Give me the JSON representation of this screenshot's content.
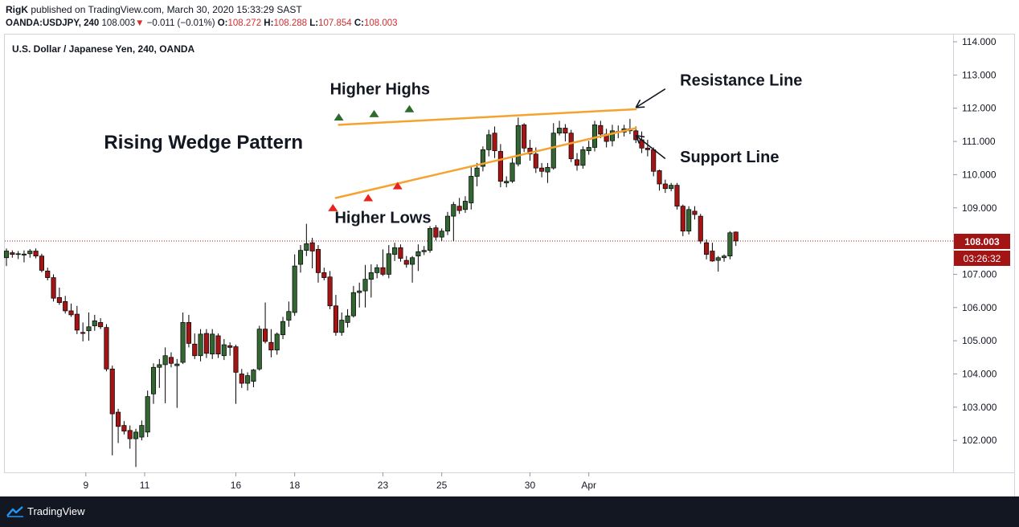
{
  "header": {
    "user": "RigK",
    "published_text": "published on TradingView.com, March 30, 2020 15:33:29 SAST",
    "symbol": "OANDA:USDJPY, 240",
    "price": "108.003",
    "change": "−0.011 (−0.01%)",
    "o_label": "O:",
    "o_value": "108.272",
    "h_label": "H:",
    "h_value": "108.288",
    "l_label": "L:",
    "l_value": "107.854",
    "c_label": "C:",
    "c_value": "108.003"
  },
  "chart_data": {
    "type": "candlestick",
    "title": "U.S. Dollar / Japanese Yen, 240, OANDA",
    "y_axis": {
      "min": 101.2,
      "max": 114.1,
      "ticks": [
        "114.000",
        "113.000",
        "112.000",
        "111.000",
        "110.000",
        "109.000",
        "108.000",
        "107.000",
        "106.000",
        "105.000",
        "104.000",
        "103.000",
        "102.000"
      ]
    },
    "x_axis": {
      "tick_labels": [
        "9",
        "11",
        "16",
        "18",
        "23",
        "25",
        "30",
        "Apr"
      ],
      "tick_index": [
        27,
        47,
        78,
        98,
        128,
        148,
        178,
        198
      ]
    },
    "current_price": {
      "value": 108.003,
      "label": "108.003",
      "countdown": "03:26:32",
      "color": "#a31515"
    },
    "colors": {
      "up_fill": "#336633",
      "down_fill": "#a31515",
      "wick": "#000000",
      "wedge": "#f5a22f",
      "marker_high": "#2e6b2e",
      "marker_low": "#e8231c"
    },
    "candles": [
      {
        "o": 107.5,
        "h": 107.78,
        "l": 107.25,
        "c": 107.7
      },
      {
        "o": 107.65,
        "h": 107.72,
        "l": 107.5,
        "c": 107.6
      },
      {
        "o": 107.6,
        "h": 107.7,
        "l": 107.46,
        "c": 107.62
      },
      {
        "o": 107.58,
        "h": 107.72,
        "l": 107.36,
        "c": 107.61
      },
      {
        "o": 107.62,
        "h": 107.76,
        "l": 107.5,
        "c": 107.7
      },
      {
        "o": 107.7,
        "h": 107.78,
        "l": 107.48,
        "c": 107.55
      },
      {
        "o": 107.55,
        "h": 107.62,
        "l": 107.06,
        "c": 107.12
      },
      {
        "o": 107.1,
        "h": 107.2,
        "l": 106.82,
        "c": 106.9
      },
      {
        "o": 106.9,
        "h": 107.0,
        "l": 106.18,
        "c": 106.28
      },
      {
        "o": 106.3,
        "h": 106.6,
        "l": 106.08,
        "c": 106.15
      },
      {
        "o": 106.18,
        "h": 106.35,
        "l": 105.82,
        "c": 105.9
      },
      {
        "o": 105.9,
        "h": 106.12,
        "l": 105.72,
        "c": 105.78
      },
      {
        "o": 105.8,
        "h": 106.05,
        "l": 105.2,
        "c": 105.32
      },
      {
        "o": 105.25,
        "h": 105.55,
        "l": 104.98,
        "c": 105.22
      },
      {
        "o": 105.3,
        "h": 105.85,
        "l": 105.0,
        "c": 105.42
      },
      {
        "o": 105.45,
        "h": 105.78,
        "l": 105.3,
        "c": 105.6
      },
      {
        "o": 105.55,
        "h": 105.68,
        "l": 105.35,
        "c": 105.42
      },
      {
        "o": 105.4,
        "h": 105.5,
        "l": 104.08,
        "c": 104.15
      },
      {
        "o": 104.15,
        "h": 104.25,
        "l": 101.55,
        "c": 102.8
      },
      {
        "o": 102.85,
        "h": 102.95,
        "l": 101.92,
        "c": 102.42
      },
      {
        "o": 102.45,
        "h": 102.58,
        "l": 102.18,
        "c": 102.28
      },
      {
        "o": 102.3,
        "h": 102.45,
        "l": 101.75,
        "c": 102.05
      },
      {
        "o": 102.05,
        "h": 102.35,
        "l": 101.2,
        "c": 102.25
      },
      {
        "o": 102.1,
        "h": 102.6,
        "l": 102.0,
        "c": 102.45
      },
      {
        "o": 102.25,
        "h": 103.5,
        "l": 102.1,
        "c": 103.32
      },
      {
        "o": 103.4,
        "h": 104.32,
        "l": 103.1,
        "c": 104.2
      },
      {
        "o": 104.2,
        "h": 104.45,
        "l": 103.58,
        "c": 104.28
      },
      {
        "o": 104.28,
        "h": 104.8,
        "l": 103.12,
        "c": 104.55
      },
      {
        "o": 104.5,
        "h": 104.65,
        "l": 104.2,
        "c": 104.32
      },
      {
        "o": 104.25,
        "h": 104.45,
        "l": 102.98,
        "c": 104.3
      },
      {
        "o": 104.35,
        "h": 105.85,
        "l": 104.3,
        "c": 105.55
      },
      {
        "o": 105.55,
        "h": 105.78,
        "l": 104.8,
        "c": 104.92
      },
      {
        "o": 104.9,
        "h": 105.22,
        "l": 104.45,
        "c": 104.55
      },
      {
        "o": 104.55,
        "h": 105.35,
        "l": 104.38,
        "c": 105.2
      },
      {
        "o": 105.22,
        "h": 105.35,
        "l": 104.48,
        "c": 104.62
      },
      {
        "o": 104.6,
        "h": 105.35,
        "l": 104.45,
        "c": 105.2
      },
      {
        "o": 105.15,
        "h": 105.22,
        "l": 104.48,
        "c": 104.6
      },
      {
        "o": 104.55,
        "h": 105.05,
        "l": 104.42,
        "c": 104.88
      },
      {
        "o": 104.85,
        "h": 104.95,
        "l": 104.55,
        "c": 104.8
      },
      {
        "o": 104.82,
        "h": 104.88,
        "l": 103.1,
        "c": 104.05
      },
      {
        "o": 104.0,
        "h": 104.15,
        "l": 103.58,
        "c": 103.72
      },
      {
        "o": 103.72,
        "h": 104.05,
        "l": 103.5,
        "c": 103.95
      },
      {
        "o": 103.78,
        "h": 104.15,
        "l": 103.6,
        "c": 104.12
      },
      {
        "o": 104.15,
        "h": 105.45,
        "l": 104.1,
        "c": 105.35
      },
      {
        "o": 105.35,
        "h": 106.15,
        "l": 104.92,
        "c": 104.98
      },
      {
        "o": 104.95,
        "h": 105.35,
        "l": 104.5,
        "c": 104.72
      },
      {
        "o": 104.72,
        "h": 105.25,
        "l": 104.58,
        "c": 105.2
      },
      {
        "o": 105.18,
        "h": 105.72,
        "l": 105.05,
        "c": 105.58
      },
      {
        "o": 105.62,
        "h": 106.18,
        "l": 105.42,
        "c": 105.88
      },
      {
        "o": 105.85,
        "h": 107.6,
        "l": 105.75,
        "c": 107.25
      },
      {
        "o": 107.3,
        "h": 107.88,
        "l": 107.05,
        "c": 107.72
      },
      {
        "o": 107.72,
        "h": 108.52,
        "l": 107.55,
        "c": 107.92
      },
      {
        "o": 107.95,
        "h": 108.1,
        "l": 107.18,
        "c": 107.7
      },
      {
        "o": 107.75,
        "h": 107.88,
        "l": 106.75,
        "c": 107.05
      },
      {
        "o": 107.05,
        "h": 107.2,
        "l": 106.82,
        "c": 106.9
      },
      {
        "o": 106.92,
        "h": 107.1,
        "l": 105.95,
        "c": 106.05
      },
      {
        "o": 106.05,
        "h": 106.38,
        "l": 105.15,
        "c": 105.25
      },
      {
        "o": 105.25,
        "h": 105.85,
        "l": 105.15,
        "c": 105.62
      },
      {
        "o": 105.55,
        "h": 105.95,
        "l": 105.4,
        "c": 105.75
      },
      {
        "o": 105.75,
        "h": 106.65,
        "l": 105.7,
        "c": 106.45
      },
      {
        "o": 106.45,
        "h": 106.75,
        "l": 106.0,
        "c": 106.5
      },
      {
        "o": 106.5,
        "h": 107.28,
        "l": 106.0,
        "c": 106.85
      },
      {
        "o": 106.85,
        "h": 107.3,
        "l": 106.3,
        "c": 107.05
      },
      {
        "o": 107.05,
        "h": 107.3,
        "l": 106.88,
        "c": 107.2
      },
      {
        "o": 107.2,
        "h": 107.75,
        "l": 106.95,
        "c": 107.0
      },
      {
        "o": 107.0,
        "h": 107.88,
        "l": 106.88,
        "c": 107.62
      },
      {
        "o": 107.6,
        "h": 107.95,
        "l": 107.4,
        "c": 107.8
      },
      {
        "o": 107.8,
        "h": 107.9,
        "l": 107.38,
        "c": 107.48
      },
      {
        "o": 107.42,
        "h": 107.55,
        "l": 107.2,
        "c": 107.3
      },
      {
        "o": 107.3,
        "h": 107.55,
        "l": 106.75,
        "c": 107.5
      },
      {
        "o": 107.55,
        "h": 107.9,
        "l": 107.1,
        "c": 107.68
      },
      {
        "o": 107.68,
        "h": 107.85,
        "l": 107.58,
        "c": 107.72
      },
      {
        "o": 107.72,
        "h": 108.45,
        "l": 107.65,
        "c": 108.38
      },
      {
        "o": 108.4,
        "h": 108.48,
        "l": 108.02,
        "c": 108.12
      },
      {
        "o": 108.12,
        "h": 108.38,
        "l": 108.0,
        "c": 108.3
      },
      {
        "o": 108.3,
        "h": 108.88,
        "l": 108.18,
        "c": 108.75
      },
      {
        "o": 108.75,
        "h": 109.18,
        "l": 108.0,
        "c": 109.1
      },
      {
        "o": 109.05,
        "h": 109.3,
        "l": 108.82,
        "c": 108.92
      },
      {
        "o": 108.95,
        "h": 109.35,
        "l": 108.85,
        "c": 109.2
      },
      {
        "o": 109.15,
        "h": 110.25,
        "l": 108.95,
        "c": 109.95
      },
      {
        "o": 109.95,
        "h": 110.35,
        "l": 109.65,
        "c": 110.2
      },
      {
        "o": 110.25,
        "h": 110.85,
        "l": 110.1,
        "c": 110.75
      },
      {
        "o": 110.75,
        "h": 111.35,
        "l": 110.55,
        "c": 111.2
      },
      {
        "o": 111.25,
        "h": 111.45,
        "l": 110.5,
        "c": 110.72
      },
      {
        "o": 110.7,
        "h": 110.92,
        "l": 109.62,
        "c": 109.8
      },
      {
        "o": 109.75,
        "h": 109.95,
        "l": 109.62,
        "c": 109.8
      },
      {
        "o": 109.8,
        "h": 110.5,
        "l": 109.75,
        "c": 110.35
      },
      {
        "o": 110.32,
        "h": 111.72,
        "l": 110.25,
        "c": 111.48
      },
      {
        "o": 111.5,
        "h": 111.55,
        "l": 110.68,
        "c": 110.8
      },
      {
        "o": 110.8,
        "h": 111.05,
        "l": 110.42,
        "c": 110.62
      },
      {
        "o": 110.62,
        "h": 110.82,
        "l": 110.05,
        "c": 110.2
      },
      {
        "o": 110.2,
        "h": 110.35,
        "l": 109.92,
        "c": 110.1
      },
      {
        "o": 110.08,
        "h": 110.35,
        "l": 109.75,
        "c": 110.22
      },
      {
        "o": 110.2,
        "h": 111.55,
        "l": 110.15,
        "c": 111.25
      },
      {
        "o": 111.25,
        "h": 111.62,
        "l": 111.18,
        "c": 111.4
      },
      {
        "o": 111.4,
        "h": 111.52,
        "l": 111.0,
        "c": 111.25
      },
      {
        "o": 111.25,
        "h": 111.35,
        "l": 110.38,
        "c": 110.48
      },
      {
        "o": 110.45,
        "h": 110.65,
        "l": 110.12,
        "c": 110.28
      },
      {
        "o": 110.28,
        "h": 110.85,
        "l": 110.18,
        "c": 110.75
      },
      {
        "o": 110.72,
        "h": 111.02,
        "l": 110.6,
        "c": 110.82
      },
      {
        "o": 110.82,
        "h": 111.62,
        "l": 110.7,
        "c": 111.5
      },
      {
        "o": 111.48,
        "h": 111.62,
        "l": 111.1,
        "c": 111.22
      },
      {
        "o": 111.22,
        "h": 111.38,
        "l": 110.82,
        "c": 111.0
      },
      {
        "o": 111.02,
        "h": 111.5,
        "l": 110.85,
        "c": 111.32
      },
      {
        "o": 111.3,
        "h": 111.48,
        "l": 111.1,
        "c": 111.28
      },
      {
        "o": 111.28,
        "h": 111.5,
        "l": 111.15,
        "c": 111.38
      },
      {
        "o": 111.38,
        "h": 111.68,
        "l": 111.22,
        "c": 111.32
      },
      {
        "o": 111.32,
        "h": 111.45,
        "l": 110.95,
        "c": 111.05
      },
      {
        "o": 111.05,
        "h": 111.3,
        "l": 110.65,
        "c": 110.8
      },
      {
        "o": 110.8,
        "h": 111.05,
        "l": 110.55,
        "c": 110.75
      },
      {
        "o": 110.75,
        "h": 110.82,
        "l": 109.95,
        "c": 110.1
      },
      {
        "o": 110.12,
        "h": 110.15,
        "l": 109.52,
        "c": 109.72
      },
      {
        "o": 109.72,
        "h": 109.85,
        "l": 109.45,
        "c": 109.58
      },
      {
        "o": 109.58,
        "h": 109.75,
        "l": 109.5,
        "c": 109.68
      },
      {
        "o": 109.68,
        "h": 109.75,
        "l": 108.95,
        "c": 109.05
      },
      {
        "o": 109.05,
        "h": 109.1,
        "l": 108.15,
        "c": 108.3
      },
      {
        "o": 108.3,
        "h": 109.05,
        "l": 108.2,
        "c": 108.95
      },
      {
        "o": 108.9,
        "h": 109.05,
        "l": 108.65,
        "c": 108.8
      },
      {
        "o": 108.75,
        "h": 108.82,
        "l": 107.92,
        "c": 108.0
      },
      {
        "o": 107.95,
        "h": 108.05,
        "l": 107.45,
        "c": 107.6
      },
      {
        "o": 107.7,
        "h": 107.95,
        "l": 107.38,
        "c": 107.4
      },
      {
        "o": 107.42,
        "h": 107.55,
        "l": 107.08,
        "c": 107.5
      },
      {
        "o": 107.5,
        "h": 107.6,
        "l": 107.38,
        "c": 107.55
      },
      {
        "o": 107.55,
        "h": 108.3,
        "l": 107.45,
        "c": 108.25
      },
      {
        "o": 108.272,
        "h": 108.288,
        "l": 107.854,
        "c": 108.003
      }
    ],
    "candle_x_index": [
      0,
      2,
      4,
      6,
      8,
      10,
      12,
      14,
      16,
      18,
      20,
      22,
      24,
      26,
      28,
      30,
      32,
      34,
      36,
      38,
      40,
      42,
      44,
      46,
      48,
      50,
      52,
      54,
      56,
      58,
      60,
      62,
      64,
      66,
      68,
      70,
      72,
      74,
      76,
      78,
      80,
      82,
      84,
      86,
      88,
      90,
      92,
      94,
      96,
      98,
      100,
      102,
      104,
      106,
      108,
      110,
      112,
      114,
      116,
      118,
      120,
      122,
      124,
      126,
      128,
      130,
      132,
      134,
      136,
      138,
      140,
      142,
      144,
      146,
      148,
      150,
      152,
      154,
      156,
      158,
      160,
      162,
      164,
      166,
      168,
      170,
      172,
      174,
      176,
      178,
      180,
      182,
      184,
      186,
      188,
      190,
      192,
      194,
      196,
      198,
      200,
      202,
      204,
      206,
      208,
      210,
      212,
      214,
      216,
      218,
      220,
      222,
      224,
      226,
      228,
      230,
      232,
      234,
      236,
      238,
      240,
      242,
      244,
      246,
      248,
      250,
      252,
      254,
      256,
      258
    ],
    "wedge_lines": [
      {
        "name": "resistance",
        "points": [
          {
            "i": 113,
            "y": 111.5
          },
          {
            "i": 214,
            "y": 111.97
          }
        ]
      },
      {
        "name": "support",
        "points": [
          {
            "i": 112,
            "y": 109.3
          },
          {
            "i": 214,
            "y": 111.4
          }
        ]
      }
    ],
    "markers": [
      {
        "kind": "high",
        "i": 113,
        "y": 111.75
      },
      {
        "kind": "high",
        "i": 125,
        "y": 111.85
      },
      {
        "kind": "high",
        "i": 137,
        "y": 112.0
      },
      {
        "kind": "low",
        "i": 111,
        "y": 109.02
      },
      {
        "kind": "low",
        "i": 123,
        "y": 109.32
      },
      {
        "kind": "low",
        "i": 133,
        "y": 109.68
      }
    ],
    "annotations": [
      {
        "text": "Higher Highs",
        "size": "medium",
        "i": 127,
        "y": 112.42
      },
      {
        "text": "Rising Wedge Pattern",
        "size": "large",
        "i": 67,
        "y": 110.78
      },
      {
        "text": "Higher Lows",
        "size": "medium",
        "i": 128,
        "y": 108.55
      },
      {
        "text": "Resistance Line",
        "size": "medium",
        "i": 229,
        "y": 112.68
      },
      {
        "text": "Support Line",
        "size": "medium",
        "i": 229,
        "y": 110.37
      }
    ],
    "arrows": [
      {
        "to": "resistance",
        "from_i": 224,
        "from_y": 112.58,
        "to_i": 214,
        "to_y": 112.02
      },
      {
        "to": "support",
        "from_i": 224,
        "from_y": 110.48,
        "to_i": 214,
        "to_y": 111.18
      }
    ]
  },
  "footer": {
    "brand": "TradingView"
  }
}
